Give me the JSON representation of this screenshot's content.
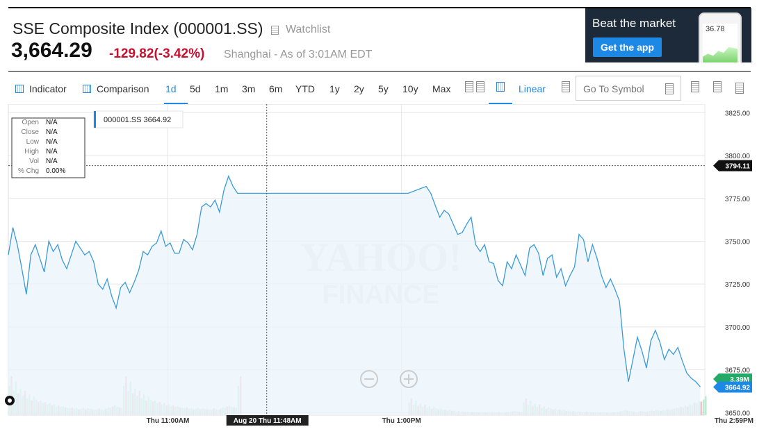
{
  "header": {
    "title": "SSE Composite Index (000001.SS)",
    "watchlist_label": "Watchlist",
    "price": "3,664.29",
    "change": "-129.82",
    "change_pct": "(-3.42%)",
    "as_of": "Shanghai - As of 3:01AM EDT"
  },
  "ad": {
    "headline": "Beat the market",
    "button": "Get the app",
    "phone_value": "36.78"
  },
  "toolbar": {
    "indicator": "Indicator",
    "comparison": "Comparison",
    "ranges": [
      "1d",
      "5d",
      "1m",
      "3m",
      "6m",
      "YTD",
      "1y",
      "2y",
      "5y",
      "10y",
      "Max"
    ],
    "active_range": "1d",
    "scale": "Linear",
    "symbol_placeholder": "Go To Symbol"
  },
  "chart_data": {
    "type": "line",
    "series": [
      {
        "name": "000001.SS",
        "values": [
          [
            0,
            3742
          ],
          [
            2,
            3758
          ],
          [
            4,
            3748
          ],
          [
            6,
            3734
          ],
          [
            8,
            3719
          ],
          [
            10,
            3742
          ],
          [
            12,
            3748
          ],
          [
            14,
            3740
          ],
          [
            16,
            3732
          ],
          [
            18,
            3750
          ],
          [
            20,
            3744
          ],
          [
            22,
            3748
          ],
          [
            24,
            3739
          ],
          [
            26,
            3734
          ],
          [
            28,
            3742
          ],
          [
            30,
            3750
          ],
          [
            32,
            3746
          ],
          [
            34,
            3742
          ],
          [
            36,
            3744
          ],
          [
            38,
            3738
          ],
          [
            40,
            3725
          ],
          [
            42,
            3722
          ],
          [
            44,
            3728
          ],
          [
            46,
            3718
          ],
          [
            48,
            3711
          ],
          [
            50,
            3723
          ],
          [
            52,
            3726
          ],
          [
            54,
            3720
          ],
          [
            56,
            3726
          ],
          [
            58,
            3733
          ],
          [
            60,
            3744
          ],
          [
            62,
            3742
          ],
          [
            64,
            3747
          ],
          [
            66,
            3749
          ],
          [
            68,
            3756
          ],
          [
            70,
            3747
          ],
          [
            72,
            3749
          ],
          [
            74,
            3743
          ],
          [
            76,
            3743
          ],
          [
            78,
            3751
          ],
          [
            80,
            3749
          ],
          [
            82,
            3745
          ],
          [
            84,
            3754
          ],
          [
            86,
            3770
          ],
          [
            88,
            3772
          ],
          [
            90,
            3770
          ],
          [
            92,
            3774
          ],
          [
            94,
            3767
          ],
          [
            96,
            3780
          ],
          [
            98,
            3788
          ],
          [
            100,
            3782
          ],
          [
            102,
            3778
          ],
          [
            140,
            3778
          ],
          [
            178,
            3778
          ],
          [
            186,
            3782
          ],
          [
            188,
            3778
          ],
          [
            190,
            3771
          ],
          [
            192,
            3764
          ],
          [
            194,
            3768
          ],
          [
            196,
            3766
          ],
          [
            198,
            3760
          ],
          [
            200,
            3754
          ],
          [
            202,
            3755
          ],
          [
            204,
            3760
          ],
          [
            206,
            3764
          ],
          [
            208,
            3748
          ],
          [
            210,
            3744
          ],
          [
            212,
            3748
          ],
          [
            214,
            3738
          ],
          [
            216,
            3737
          ],
          [
            218,
            3727
          ],
          [
            220,
            3724
          ],
          [
            222,
            3738
          ],
          [
            224,
            3734
          ],
          [
            226,
            3742
          ],
          [
            228,
            3736
          ],
          [
            230,
            3730
          ],
          [
            232,
            3746
          ],
          [
            234,
            3748
          ],
          [
            236,
            3743
          ],
          [
            238,
            3730
          ],
          [
            240,
            3740
          ],
          [
            242,
            3742
          ],
          [
            244,
            3729
          ],
          [
            246,
            3734
          ],
          [
            248,
            3724
          ],
          [
            250,
            3730
          ],
          [
            252,
            3735
          ],
          [
            254,
            3754
          ],
          [
            256,
            3751
          ],
          [
            258,
            3738
          ],
          [
            260,
            3748
          ],
          [
            262,
            3740
          ],
          [
            264,
            3730
          ],
          [
            266,
            3723
          ],
          [
            268,
            3728
          ],
          [
            270,
            3722
          ],
          [
            272,
            3715
          ],
          [
            274,
            3687
          ],
          [
            276,
            3668
          ],
          [
            278,
            3681
          ],
          [
            280,
            3694
          ],
          [
            282,
            3686
          ],
          [
            284,
            3676
          ],
          [
            286,
            3692
          ],
          [
            288,
            3698
          ],
          [
            290,
            3691
          ],
          [
            292,
            3681
          ],
          [
            294,
            3687
          ],
          [
            296,
            3684
          ],
          [
            298,
            3688
          ],
          [
            300,
            3680
          ],
          [
            302,
            3673
          ],
          [
            304,
            3670
          ],
          [
            306,
            3668
          ],
          [
            308,
            3665
          ]
        ]
      }
    ],
    "x_ticks": [
      {
        "t": 71,
        "label": "Thu 11:00AM"
      },
      {
        "t": 175,
        "label": "Thu 1:00PM"
      },
      {
        "t": 310,
        "label": "Thu 2:59PM"
      }
    ],
    "crosshair": {
      "t": 115,
      "label": "Aug 20 Thu 11:48AM",
      "y": 3794.11,
      "y_label": "3794.11"
    },
    "y_ticks": [
      3650,
      3675,
      3700,
      3725,
      3750,
      3775,
      3800,
      3825
    ],
    "ylim": [
      3648.5,
      3830
    ],
    "xlim": [
      0,
      310
    ],
    "y_tick_labels": [
      "3650.00",
      "3675.00",
      "3700.00",
      "3725.00",
      "3750.00",
      "3775.00",
      "3800.00",
      "3825.00"
    ],
    "volume_badge": "3.39M",
    "last_badge": "3664.92",
    "legend_label": "000001.SS 3664.92",
    "ohlc": [
      {
        "k": "Open",
        "v": "N/A"
      },
      {
        "k": "Close",
        "v": "N/A"
      },
      {
        "k": "Low",
        "v": "N/A"
      },
      {
        "k": "High",
        "v": "N/A"
      },
      {
        "k": "Vol",
        "v": "N/A"
      },
      {
        "k": "% Chg",
        "v": "0.00%"
      }
    ],
    "watermark_line1": "YAHOO!",
    "watermark_line2": "FINANCE",
    "colors": {
      "line": "#3a9ad9",
      "fill": "#eaf4fc",
      "vol_up": "#b8e6cd",
      "vol_down": "#f4b6c3",
      "badge_green": "#22aa66",
      "badge_blue": "#1e88e5"
    }
  }
}
